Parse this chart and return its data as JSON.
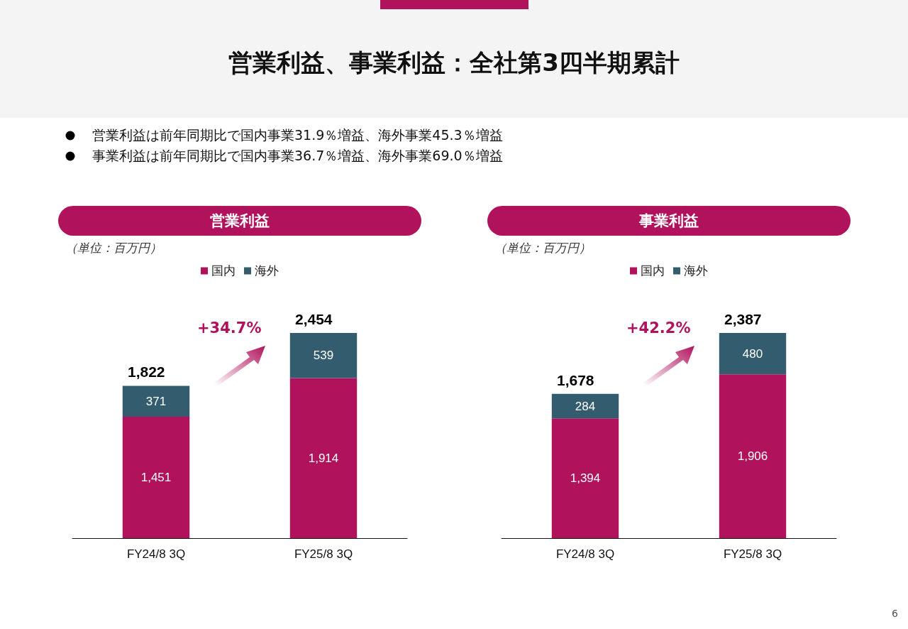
{
  "chart_data": [
    {
      "type": "bar",
      "title": "営業利益",
      "subtitle": "（単位：百万円）",
      "categories": [
        "FY24/8 3Q",
        "FY25/8 3Q"
      ],
      "stacked": true,
      "legend": "top",
      "totals": [
        "1,822",
        "2,454"
      ],
      "series": [
        {
          "name": "国内",
          "color": "#b0125b",
          "values": [
            1451,
            1914
          ],
          "value_labels": [
            "1,451",
            "1,914"
          ]
        },
        {
          "name": "海外",
          "color": "#335c6e",
          "values": [
            371,
            539
          ],
          "value_labels": [
            "371",
            "539"
          ]
        }
      ],
      "annotations": [
        "+34.7%",
        "営業利益、事業利益：全社第3四半期累計",
        "営業利益は前年同期比で国内事業31.9％増益、海外事業45.3％増益",
        "事業利益は前年同期比で国内事業36.7％増益、海外事業69.0％増益"
      ]
    },
    {
      "type": "bar",
      "title": "事業利益",
      "subtitle": "（単位：百万円）",
      "categories": [
        "FY24/8 3Q",
        "FY25/8 3Q"
      ],
      "stacked": true,
      "legend": "top",
      "totals": [
        "1,678",
        "2,387"
      ],
      "series": [
        {
          "name": "国内",
          "color": "#b0125b",
          "values": [
            1394,
            1906
          ],
          "value_labels": [
            "1,394",
            "1,906"
          ]
        },
        {
          "name": "海外",
          "color": "#335c6e",
          "values": [
            284,
            480
          ],
          "value_labels": [
            "284",
            "480"
          ]
        }
      ],
      "annotations": [
        "+42.2%",
        "6"
      ]
    }
  ]
}
